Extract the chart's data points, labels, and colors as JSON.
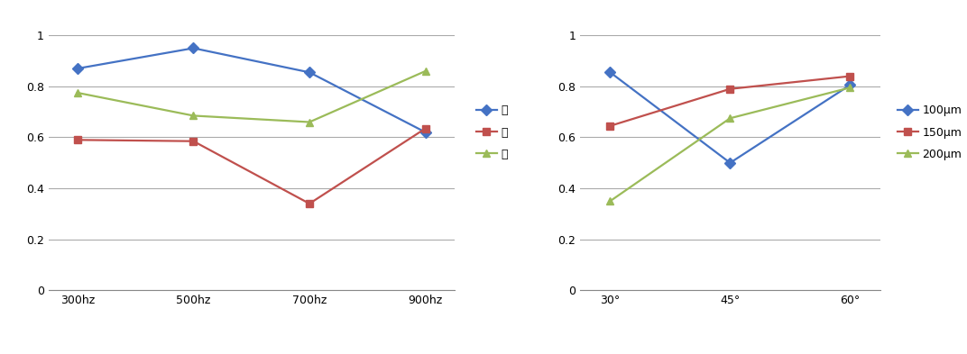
{
  "chart1": {
    "x_labels": [
      "300hz",
      "500hz",
      "700hz",
      "900hz"
    ],
    "series": [
      {
        "label": "상",
        "color": "#4472C4",
        "marker": "D",
        "values": [
          0.87,
          0.95,
          0.855,
          0.62
        ]
      },
      {
        "label": "중",
        "color": "#C0504D",
        "marker": "s",
        "values": [
          0.59,
          0.585,
          0.34,
          0.635
        ]
      },
      {
        "label": "하",
        "color": "#9BBB59",
        "marker": "^",
        "values": [
          0.775,
          0.685,
          0.66,
          0.86
        ]
      }
    ],
    "ylim": [
      0,
      1.0
    ],
    "yticks": [
      0,
      0.2,
      0.4,
      0.6,
      0.8,
      1.0
    ]
  },
  "chart2": {
    "x_labels": [
      "30°",
      "45°",
      "60°"
    ],
    "series": [
      {
        "label": "100μm",
        "color": "#4472C4",
        "marker": "D",
        "values": [
          0.855,
          0.5,
          0.805
        ]
      },
      {
        "label": "150μm",
        "color": "#C0504D",
        "marker": "s",
        "values": [
          0.645,
          0.79,
          0.84
        ]
      },
      {
        "label": "200μm",
        "color": "#9BBB59",
        "marker": "^",
        "values": [
          0.35,
          0.675,
          0.795
        ]
      }
    ],
    "ylim": [
      0,
      1.0
    ],
    "yticks": [
      0,
      0.2,
      0.4,
      0.6,
      0.8,
      1.0
    ]
  },
  "background_color": "#ffffff",
  "grid_color": "#AAAAAA",
  "line_width": 1.6,
  "marker_size": 6
}
